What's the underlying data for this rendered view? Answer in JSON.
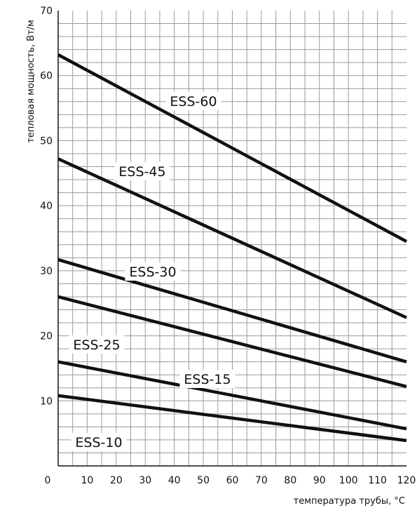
{
  "chart_data": {
    "type": "line",
    "xlabel": "температура трубы, °C",
    "ylabel": "тепловая мощность, Вт/м",
    "xlim": [
      0,
      120
    ],
    "ylim": [
      0,
      70
    ],
    "x_ticks": [
      "0",
      "10",
      "20",
      "30",
      "40",
      "50",
      "60",
      "70",
      "80",
      "90",
      "100",
      "110",
      "120"
    ],
    "y_ticks": [
      "10",
      "20",
      "30",
      "40",
      "50",
      "60",
      "70"
    ],
    "grid": true,
    "series": [
      {
        "name": "ESS-60",
        "x": [
          0,
          120
        ],
        "y": [
          63.2,
          34.5
        ]
      },
      {
        "name": "ESS-45",
        "x": [
          0,
          120
        ],
        "y": [
          47.2,
          22.8
        ]
      },
      {
        "name": "ESS-30",
        "x": [
          0,
          120
        ],
        "y": [
          31.7,
          16.0
        ]
      },
      {
        "name": "ESS-25",
        "x": [
          0,
          120
        ],
        "y": [
          26.0,
          12.2
        ]
      },
      {
        "name": "ESS-15",
        "x": [
          0,
          120
        ],
        "y": [
          16.0,
          5.7
        ]
      },
      {
        "name": "ESS-10",
        "x": [
          0,
          120
        ],
        "y": [
          10.8,
          3.9
        ]
      }
    ],
    "colors": {
      "line": "#111111",
      "grid": "#9a9a9a",
      "background": "#ffffff"
    }
  }
}
